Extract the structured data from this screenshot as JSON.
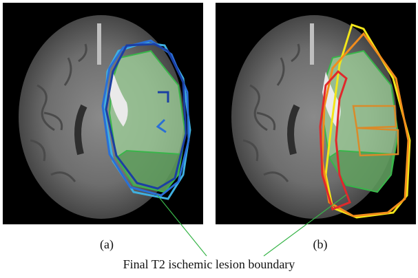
{
  "panels": [
    {
      "label": "(a)"
    },
    {
      "label": "(b)"
    }
  ],
  "caption": "Final T2 ischemic lesion boundary",
  "colors": {
    "lesion_fill": "#9fd39a",
    "lesion_outline": "#39b54a",
    "panel_a_contours": [
      "#1b3fa3",
      "#2a6fd6",
      "#3fb0e0"
    ],
    "panel_b_contours": [
      "#e0282b",
      "#f28c1c",
      "#f2e51a",
      "#d98b2a"
    ],
    "leader_line": "#39b54a"
  }
}
